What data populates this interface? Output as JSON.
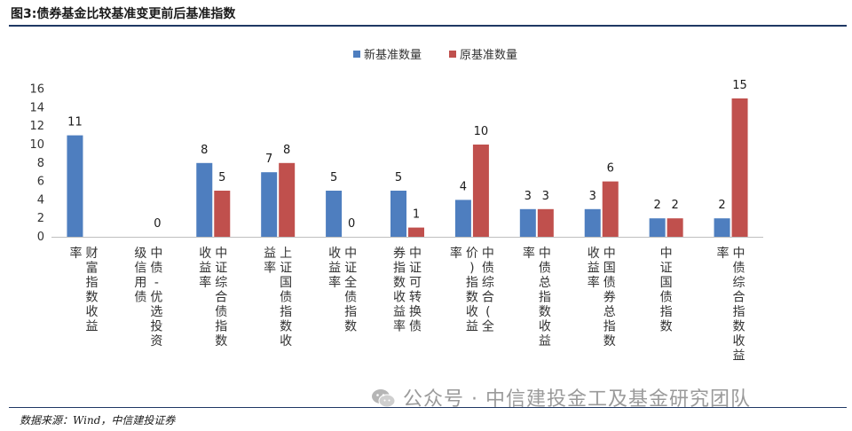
{
  "header": {
    "title": "图3:债券基金比较基准变更前后基准指数"
  },
  "footer": {
    "source": "数据来源：Wind，中信建投证券",
    "watermark": "公众号 · 中信建投金工及基金研究团队"
  },
  "colors": {
    "new": "#4e7ebf",
    "old": "#c0504d",
    "rule": "#1f3864",
    "axis": "#bfbfbf"
  },
  "chart_data": {
    "type": "bar",
    "categories": [
      "财富指数收益率",
      "中债-优选投资级信用债",
      "中证综合债指数收益率",
      "上证国债指数收益率",
      "中证全债指数收益率",
      "中证可转换债券指数收益率",
      "中债综合(全价)指数收益率",
      "中债总指数收益率",
      "中国债券总指数收益率",
      "中证国债指数",
      "中债综合指数收益率"
    ],
    "series": [
      {
        "name": "新基准数量",
        "values": [
          11,
          null,
          8,
          7,
          5,
          5,
          4,
          3,
          3,
          2,
          2
        ]
      },
      {
        "name": "原基准数量",
        "values": [
          null,
          0,
          5,
          8,
          0,
          1,
          10,
          3,
          6,
          2,
          15
        ]
      }
    ],
    "yticks": [
      0,
      2,
      4,
      6,
      8,
      10,
      12,
      14,
      16
    ],
    "ylim": [
      0,
      16
    ],
    "legend_position": "top-center",
    "grid": false
  }
}
